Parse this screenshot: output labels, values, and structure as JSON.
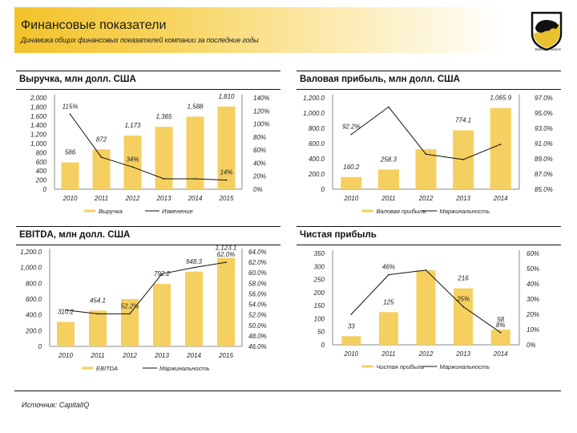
{
  "header": {
    "title": "Финансовые показатели",
    "subtitle": "Динамика общих финансовых показателей компании за последние годы",
    "logo_icon": "shield-bull-logo-icon",
    "logo_caption": "Bakkle Freedom"
  },
  "colors": {
    "bar": "#f5cf5f",
    "line": "#111111",
    "accent": "#f3c22a"
  },
  "footer": {
    "source": "Источник: CapitalIQ"
  },
  "chart_data": [
    {
      "id": "revenue",
      "type": "bar",
      "title": "Выручка, млн долл. США",
      "categories": [
        "2010",
        "2011",
        "2012",
        "2013",
        "2014",
        "2015"
      ],
      "series": [
        {
          "name": "Выручка",
          "kind": "bar",
          "axis": "left",
          "values": [
            586,
            872,
            1173,
            1365,
            1588,
            1810
          ],
          "labels": [
            "586",
            "872",
            "1,173",
            "1,365",
            "1,588",
            "1,810"
          ]
        },
        {
          "name": "Изменение",
          "kind": "line",
          "axis": "right",
          "values": [
            115,
            49,
            34,
            16,
            16,
            14
          ],
          "labels": [
            "115%",
            "",
            "34%",
            "",
            "",
            "14%"
          ]
        }
      ],
      "ylim": [
        0,
        2000
      ],
      "yticks": [
        "0",
        "200",
        "400",
        "600",
        "800",
        "1,000",
        "1,200",
        "1,400",
        "1,600",
        "1,800",
        "2,000"
      ],
      "y2lim": [
        0,
        140
      ],
      "y2ticks": [
        "0%",
        "20%",
        "40%",
        "60%",
        "80%",
        "100%",
        "120%",
        "140%"
      ],
      "legend": [
        "Выручка",
        "Изменение"
      ],
      "legend_position": "bottom",
      "grid": false
    },
    {
      "id": "gross_profit",
      "type": "bar",
      "title": "Валовая прибыль, млн долл. США",
      "categories": [
        "2010",
        "2011",
        "2012",
        "2013",
        "2014"
      ],
      "series": [
        {
          "name": "Валовая прибыль",
          "kind": "bar",
          "axis": "left",
          "values": [
            160.2,
            258.3,
            525,
            774.1,
            1065.9
          ],
          "labels": [
            "160.2",
            "258.3",
            "",
            "774.1",
            "1,065.9"
          ]
        },
        {
          "name": "Маржинальность",
          "kind": "line",
          "axis": "right",
          "values": [
            92.2,
            95.8,
            89.6,
            88.9,
            90.9
          ],
          "labels": [
            "92.2%",
            "",
            "",
            "",
            ""
          ]
        }
      ],
      "ylim": [
        0,
        1200
      ],
      "yticks": [
        "0",
        "200.0",
        "400.0",
        "600.0",
        "800.0",
        "1,000.0",
        "1,200.0"
      ],
      "y2lim": [
        85,
        97
      ],
      "y2ticks": [
        "85.0%",
        "87.0%",
        "89.0%",
        "91.0%",
        "93.0%",
        "95.0%",
        "97.0%"
      ],
      "legend": [
        "Валовая прибыль",
        "Маржинальность"
      ],
      "legend_position": "bottom",
      "grid": false
    },
    {
      "id": "ebitda",
      "type": "bar",
      "title": "EBITDA, млн долл. США",
      "categories": [
        "2010",
        "2011",
        "2012",
        "2013",
        "2014",
        "2015"
      ],
      "series": [
        {
          "name": "EBITDA",
          "kind": "bar",
          "axis": "left",
          "values": [
            310.2,
            454.1,
            600,
            792.2,
            948.3,
            1123.1
          ],
          "labels": [
            "310.2",
            "454.1",
            "",
            "792.2",
            "948.3",
            "1,123.1"
          ]
        },
        {
          "name": "Маржинальность",
          "kind": "line",
          "axis": "right",
          "values": [
            52.9,
            52.2,
            52.2,
            59.8,
            61.0,
            62.0
          ],
          "labels": [
            "",
            "",
            "52.2%",
            "",
            "",
            "62.0%"
          ]
        }
      ],
      "ylim": [
        0,
        1200
      ],
      "yticks": [
        "0",
        "200.0",
        "400.0",
        "600.0",
        "800.0",
        "1,000.0",
        "1,200.0"
      ],
      "y2lim": [
        46,
        64
      ],
      "y2ticks": [
        "46.0%",
        "48.0%",
        "50.0%",
        "52.0%",
        "54.0%",
        "56.0%",
        "58.0%",
        "60.0%",
        "62.0%",
        "64.0%"
      ],
      "legend": [
        "EBITDA",
        "Маржинальность"
      ],
      "legend_position": "bottom",
      "grid": false
    },
    {
      "id": "net_profit",
      "type": "bar",
      "title": "Чистая прибыль",
      "categories": [
        "2010",
        "2011",
        "2012",
        "2013",
        "2014"
      ],
      "series": [
        {
          "name": "Чистая прибыль",
          "kind": "bar",
          "axis": "left",
          "values": [
            33,
            125,
            285,
            216,
            58
          ],
          "labels": [
            "33",
            "125",
            "",
            "216",
            "58"
          ]
        },
        {
          "name": "Маржинальность",
          "kind": "line",
          "axis": "right",
          "values": [
            20,
            46,
            49,
            25,
            8
          ],
          "labels": [
            "",
            "46%",
            "",
            "25%",
            "8%"
          ]
        }
      ],
      "ylim": [
        0,
        350
      ],
      "yticks": [
        "0",
        "50",
        "100",
        "150",
        "200",
        "250",
        "300",
        "350"
      ],
      "y2lim": [
        0,
        60
      ],
      "y2ticks": [
        "0%",
        "10%",
        "20%",
        "30%",
        "40%",
        "50%",
        "60%"
      ],
      "legend": [
        "Чистая прибыль",
        "Маржинальность"
      ],
      "legend_position": "bottom",
      "grid": false
    }
  ]
}
